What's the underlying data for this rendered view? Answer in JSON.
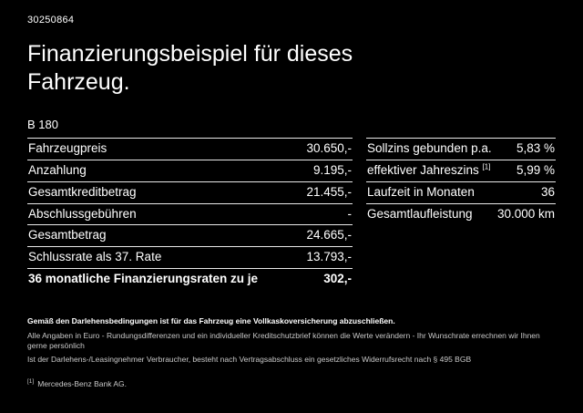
{
  "page": {
    "document_id": "30250864",
    "title": "Finanzierungsbeispiel für dieses Fahrzeug.",
    "model": "B 180",
    "background_color": "#000000",
    "text_color": "#ffffff"
  },
  "financing_table": {
    "rows": [
      {
        "label": "Fahrzeugpreis",
        "value": "30.650,-"
      },
      {
        "label": "Anzahlung",
        "value": "9.195,-"
      },
      {
        "label": "Gesamtkreditbetrag",
        "value": "21.455,-"
      },
      {
        "label": "Abschlussgebühren",
        "value": "-"
      },
      {
        "label": "Gesamtbetrag",
        "value": "24.665,-"
      },
      {
        "label": "Schlussrate als 37. Rate",
        "value": "13.793,-"
      },
      {
        "label": "36 monatliche Finanzierungsraten zu je",
        "value": "302,-"
      }
    ]
  },
  "conditions_table": {
    "rows": [
      {
        "label": "Sollzins gebunden p.a.",
        "sup": "",
        "value": "5,83 %"
      },
      {
        "label": "effektiver Jahreszins",
        "sup": "[1]",
        "value": "5,99 %"
      },
      {
        "label": "Laufzeit in Monaten",
        "sup": "",
        "value": "36"
      },
      {
        "label": "Gesamtlaufleistung",
        "sup": "",
        "value": "30.000 km"
      }
    ]
  },
  "footer": {
    "bold_note": "Gemäß den Darlehensbedingungen ist für das Fahrzeug eine Vollkaskoversicherung abzuschließen.",
    "note_line1": "Alle Angaben in Euro - Rundungsdifferenzen und ein individueller Kreditschutzbrief können die Werte verändern - Ihr Wunschrate errechnen wir Ihnen gerne persönlich",
    "note_line2": "Ist der Darlehens-/Leasingnehmer Verbraucher, besteht nach Vertragsabschluss ein gesetzliches Widerrufsrecht nach § 495 BGB",
    "footnote_marker": "[1]",
    "footnote_text": "Mercedes-Benz Bank AG."
  }
}
